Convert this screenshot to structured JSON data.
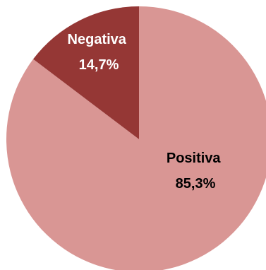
{
  "chart_data": {
    "type": "pie",
    "slices": [
      {
        "label": "Positiva",
        "value": 85.3,
        "value_text": "85,3%",
        "color": "#d99694"
      },
      {
        "label": "Negativa",
        "value": 14.7,
        "value_text": "14,7%",
        "color": "#953735"
      }
    ],
    "start": "12 o'clock",
    "direction": "counterclockwise",
    "legend": "none",
    "label_position": "inside"
  }
}
